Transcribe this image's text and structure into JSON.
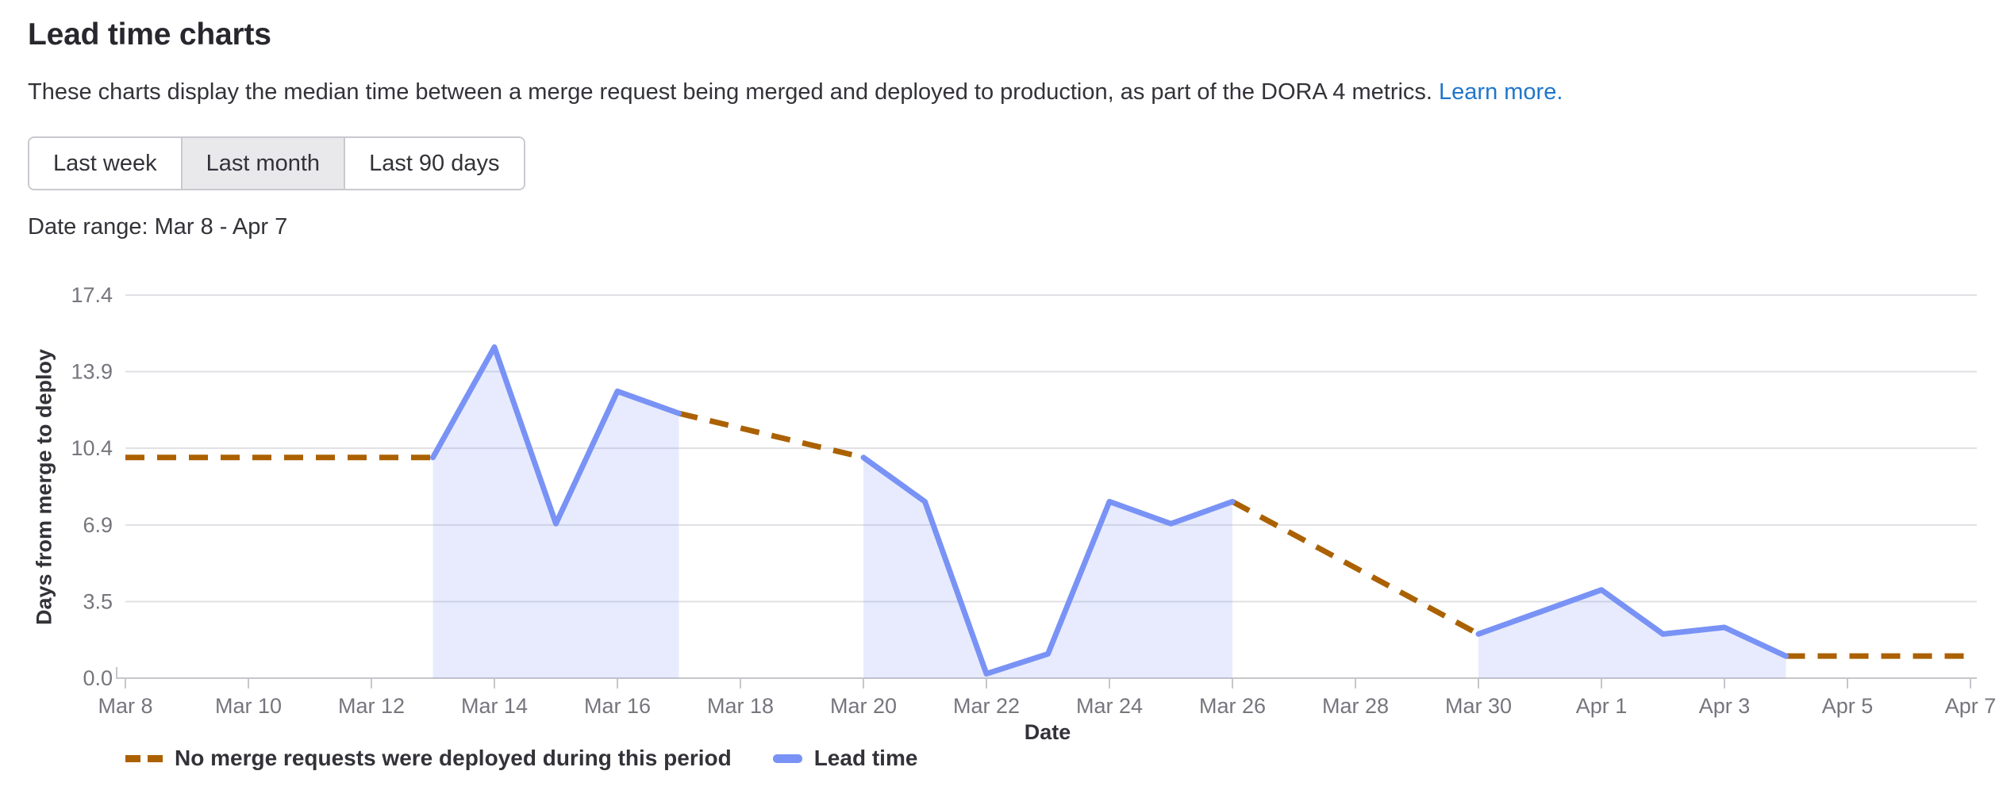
{
  "page": {
    "title": "Lead time charts",
    "description": "These charts display the median time between a merge request being merged and deployed to production, as part of the DORA 4 metrics.",
    "learn_more": "Learn more."
  },
  "controls": {
    "buttons": [
      {
        "label": "Last week",
        "selected": false
      },
      {
        "label": "Last month",
        "selected": true
      },
      {
        "label": "Last 90 days",
        "selected": false
      }
    ]
  },
  "date_range_label": "Date range: Mar 8 - Apr 7",
  "colors": {
    "link": "#1f75cb",
    "no_deploy_dashed": "#ab6100",
    "lead_time_line": "#7992f5",
    "lead_time_fill": "rgba(121,146,245,0.18)",
    "gridline": "#e1e1e5",
    "axis": "#c6c6cb",
    "tick_label": "#76757d"
  },
  "chart_data": {
    "type": "line",
    "title": "",
    "grid": true,
    "legend_position": "bottom-left",
    "x_axis": {
      "label": "Date",
      "dates": [
        "Mar 8",
        "Mar 9",
        "Mar 10",
        "Mar 11",
        "Mar 12",
        "Mar 13",
        "Mar 14",
        "Mar 15",
        "Mar 16",
        "Mar 17",
        "Mar 18",
        "Mar 19",
        "Mar 20",
        "Mar 21",
        "Mar 22",
        "Mar 23",
        "Mar 24",
        "Mar 25",
        "Mar 26",
        "Mar 27",
        "Mar 28",
        "Mar 29",
        "Mar 30",
        "Mar 31",
        "Apr 1",
        "Apr 2",
        "Apr 3",
        "Apr 4",
        "Apr 5",
        "Apr 6",
        "Apr 7"
      ],
      "ticks": [
        {
          "day": 0,
          "label": "Mar 8"
        },
        {
          "day": 2,
          "label": "Mar 10"
        },
        {
          "day": 4,
          "label": "Mar 12"
        },
        {
          "day": 6,
          "label": "Mar 14"
        },
        {
          "day": 8,
          "label": "Mar 16"
        },
        {
          "day": 10,
          "label": "Mar 18"
        },
        {
          "day": 12,
          "label": "Mar 20"
        },
        {
          "day": 14,
          "label": "Mar 22"
        },
        {
          "day": 16,
          "label": "Mar 24"
        },
        {
          "day": 18,
          "label": "Mar 26"
        },
        {
          "day": 20,
          "label": "Mar 28"
        },
        {
          "day": 22,
          "label": "Mar 30"
        },
        {
          "day": 24,
          "label": "Apr 1"
        },
        {
          "day": 26,
          "label": "Apr 3"
        },
        {
          "day": 28,
          "label": "Apr 5"
        },
        {
          "day": 30,
          "label": "Apr 7"
        }
      ]
    },
    "y_axis": {
      "label": "Days from merge to deploy",
      "min": 0,
      "max": 17.36,
      "ticks": [
        {
          "value": 0,
          "label": "0.0"
        },
        {
          "value": 3.47,
          "label": "3.5"
        },
        {
          "value": 6.94,
          "label": "6.9"
        },
        {
          "value": 10.42,
          "label": "10.4"
        },
        {
          "value": 13.89,
          "label": "13.9"
        },
        {
          "value": 17.36,
          "label": "17.4"
        }
      ]
    },
    "series": [
      {
        "name": "No merge requests were deployed during this period",
        "style": "dashed",
        "color": "#ab6100",
        "segments": [
          [
            {
              "date": "Mar 8",
              "value": 10
            },
            {
              "date": "Mar 13",
              "value": 10
            }
          ],
          [
            {
              "date": "Mar 17",
              "value": 12
            },
            {
              "date": "Mar 20",
              "value": 10
            }
          ],
          [
            {
              "date": "Mar 26",
              "value": 8
            },
            {
              "date": "Mar 30",
              "value": 2
            }
          ],
          [
            {
              "date": "Apr 4",
              "value": 1
            },
            {
              "date": "Apr 7",
              "value": 1
            }
          ]
        ]
      },
      {
        "name": "Lead time",
        "style": "solid-area",
        "color": "#7992f5",
        "fill": "rgba(121,146,245,0.18)",
        "segments": [
          [
            {
              "date": "Mar 13",
              "value": 10
            },
            {
              "date": "Mar 14",
              "value": 15
            },
            {
              "date": "Mar 15",
              "value": 7
            },
            {
              "date": "Mar 16",
              "value": 13
            },
            {
              "date": "Mar 17",
              "value": 12
            }
          ],
          [
            {
              "date": "Mar 20",
              "value": 10
            },
            {
              "date": "Mar 21",
              "value": 8
            },
            {
              "date": "Mar 22",
              "value": 0.2
            },
            {
              "date": "Mar 23",
              "value": 1.1
            },
            {
              "date": "Mar 24",
              "value": 8
            },
            {
              "date": "Mar 25",
              "value": 7
            },
            {
              "date": "Mar 26",
              "value": 8
            }
          ],
          [
            {
              "date": "Mar 30",
              "value": 2
            },
            {
              "date": "Mar 31",
              "value": 3
            },
            {
              "date": "Apr 1",
              "value": 4
            },
            {
              "date": "Apr 2",
              "value": 2
            },
            {
              "date": "Apr 3",
              "value": 2.3
            },
            {
              "date": "Apr 4",
              "value": 1
            }
          ]
        ]
      }
    ]
  }
}
